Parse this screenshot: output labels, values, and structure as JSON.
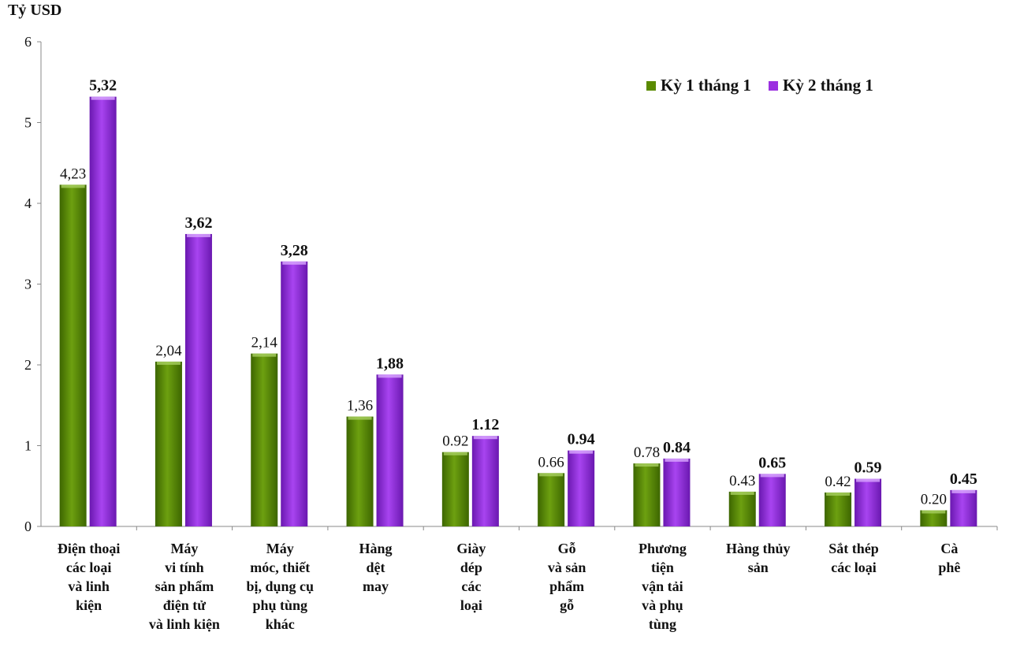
{
  "chart_data": {
    "type": "bar",
    "ylabel": "Tỷ USD",
    "ylim": [
      0,
      6
    ],
    "yticks": [
      "0",
      "1",
      "2",
      "3",
      "4",
      "5",
      "6"
    ],
    "legend_position": "top-right",
    "grid": false,
    "categories": [
      "Điện thoại\ncác loại\nvà linh\nkiện",
      "Máy\nvi tính\nsản phẩm\nđiện tử\nvà linh kiện",
      "Máy\nmóc, thiết\nbị, dụng cụ\nphụ tùng\nkhác",
      "Hàng\ndệt\nmay",
      "Giày\ndép\ncác\nloại",
      "Gỗ\nvà sản\nphẩm\ngỗ",
      "Phương\ntiện\nvận tải\nvà phụ\ntùng",
      "Hàng thủy\nsản",
      "Sắt thép\ncác loại",
      "Cà\nphê"
    ],
    "series": [
      {
        "name": "Kỳ 1 tháng 1",
        "color": "#5a8a00",
        "values": [
          4.23,
          2.04,
          2.14,
          1.36,
          0.92,
          0.66,
          0.78,
          0.43,
          0.42,
          0.2
        ],
        "labels": [
          "4,23",
          "2,04",
          "2,14",
          "1,36",
          "0.92",
          "0.66",
          "0.78",
          "0.43",
          "0.42",
          "0.20"
        ]
      },
      {
        "name": "Kỳ 2 tháng 1",
        "color": "#9b30e0",
        "values": [
          5.32,
          3.62,
          3.28,
          1.88,
          1.12,
          0.94,
          0.84,
          0.65,
          0.59,
          0.45
        ],
        "labels": [
          "5,32",
          "3,62",
          "3,28",
          "1,88",
          "1.12",
          "0.94",
          "0.84",
          "0.65",
          "0.59",
          "0.45"
        ]
      }
    ]
  }
}
